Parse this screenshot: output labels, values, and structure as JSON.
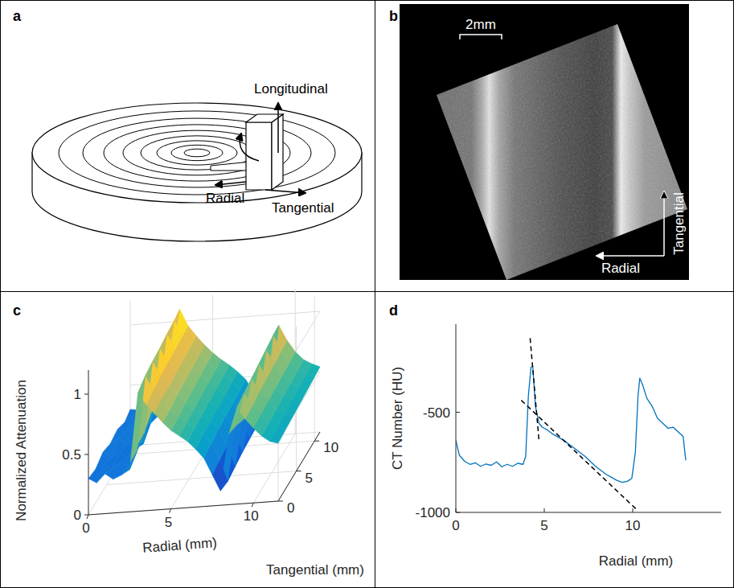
{
  "diagram": {
    "panel_label": "a",
    "labels": {
      "longitudinal": "Longitudinal",
      "radial": "Radial",
      "tangential": "Tangential"
    }
  },
  "image": {
    "panel_label": "b",
    "scale_bar": "2mm",
    "labels": {
      "radial": "Radial",
      "tangential": "Tangential"
    }
  },
  "chart_data": [
    {
      "type": "surface",
      "panel_label": "c",
      "x_label": "Radial (mm)",
      "y_label": "Tangential (mm)",
      "z_label": "Normalized Attenuation",
      "x": [
        0,
        0.5,
        1,
        1.5,
        2,
        2.5,
        3,
        3.5,
        4,
        4.5,
        5,
        5.5,
        6,
        6.5,
        7,
        7.5,
        8,
        8.5,
        9,
        9.5,
        10,
        10.5,
        11,
        11.5
      ],
      "y": [
        0,
        2,
        4,
        6,
        8,
        10,
        11.5
      ],
      "values": [
        [
          0.3,
          0.26,
          0.33,
          0.28,
          0.31,
          0.35,
          0.98,
          0.88,
          0.8,
          0.72,
          0.65,
          0.6,
          0.55,
          0.48,
          0.4,
          0.26,
          0.12,
          0.58,
          0.8,
          0.7,
          0.62,
          0.55,
          0.5,
          0.48
        ],
        [
          0.28,
          0.31,
          0.27,
          0.32,
          0.29,
          0.4,
          1.02,
          0.9,
          0.82,
          0.73,
          0.66,
          0.61,
          0.56,
          0.5,
          0.42,
          0.28,
          0.1,
          0.55,
          0.82,
          0.71,
          0.63,
          0.56,
          0.52,
          0.49
        ],
        [
          0.32,
          0.27,
          0.3,
          0.26,
          0.33,
          0.45,
          1.04,
          0.92,
          0.83,
          0.75,
          0.68,
          0.62,
          0.57,
          0.51,
          0.44,
          0.3,
          0.12,
          0.5,
          0.84,
          0.73,
          0.64,
          0.57,
          0.53,
          0.5
        ],
        [
          0.29,
          0.33,
          0.28,
          0.31,
          0.27,
          0.52,
          1.05,
          0.93,
          0.84,
          0.76,
          0.69,
          0.63,
          0.58,
          0.52,
          0.45,
          0.32,
          0.14,
          0.46,
          0.86,
          0.74,
          0.65,
          0.58,
          0.54,
          0.51
        ],
        [
          0.31,
          0.28,
          0.32,
          0.29,
          0.34,
          0.6,
          1.07,
          0.94,
          0.85,
          0.77,
          0.7,
          0.64,
          0.59,
          0.53,
          0.46,
          0.34,
          0.15,
          0.42,
          0.88,
          0.76,
          0.66,
          0.59,
          0.55,
          0.52
        ],
        [
          0.27,
          0.32,
          0.29,
          0.33,
          0.3,
          0.66,
          1.08,
          0.95,
          0.86,
          0.78,
          0.71,
          0.65,
          0.6,
          0.54,
          0.47,
          0.35,
          0.16,
          0.38,
          0.9,
          0.77,
          0.67,
          0.6,
          0.56,
          0.53
        ],
        [
          0.3,
          0.29,
          0.33,
          0.28,
          0.32,
          0.7,
          1.1,
          0.96,
          0.87,
          0.79,
          0.72,
          0.66,
          0.61,
          0.55,
          0.48,
          0.36,
          0.18,
          0.36,
          0.91,
          0.78,
          0.68,
          0.61,
          0.57,
          0.54
        ]
      ],
      "xlim": [
        0,
        11.5
      ],
      "ylim": [
        0,
        11.5
      ],
      "zlim": [
        0,
        1.2
      ],
      "xticks": [
        0,
        5,
        10
      ],
      "yticks": [
        0,
        5,
        10
      ],
      "zticks": [
        0,
        0.5,
        1
      ],
      "grid": true
    },
    {
      "type": "line",
      "panel_label": "d",
      "x_label": "Radial (mm)",
      "y_label": "CT Number (HU)",
      "xlim": [
        0,
        15
      ],
      "ylim": [
        -1000,
        -60
      ],
      "xticks": [
        0,
        5,
        10
      ],
      "yticks": [
        -1000,
        -500
      ],
      "grid": false,
      "series": [
        {
          "color": "#0072bd",
          "line_style": "solid",
          "x": [
            0,
            0.2,
            0.5,
            0.8,
            1.1,
            1.4,
            1.7,
            2.0,
            2.3,
            2.6,
            2.9,
            3.2,
            3.5,
            3.8,
            3.95,
            4.1,
            4.25,
            4.35,
            4.5,
            4.7,
            4.9,
            5.2,
            5.5,
            5.8,
            6.1,
            6.4,
            6.7,
            7.0,
            7.3,
            7.6,
            7.9,
            8.2,
            8.5,
            8.8,
            9.1,
            9.4,
            9.7,
            9.95,
            10.15,
            10.3,
            10.4,
            10.55,
            10.8,
            11.1,
            11.4,
            11.7,
            12.0,
            12.3,
            12.6,
            12.85,
            13.0
          ],
          "values": [
            -640,
            -715,
            -745,
            -760,
            -752,
            -770,
            -758,
            -765,
            -748,
            -772,
            -760,
            -770,
            -755,
            -760,
            -720,
            -420,
            -275,
            -270,
            -470,
            -555,
            -575,
            -590,
            -610,
            -625,
            -640,
            -660,
            -680,
            -700,
            -720,
            -745,
            -770,
            -790,
            -810,
            -825,
            -840,
            -850,
            -845,
            -830,
            -700,
            -420,
            -330,
            -360,
            -430,
            -470,
            -530,
            -555,
            -580,
            -575,
            -600,
            -620,
            -740
          ]
        },
        {
          "color": "#000000",
          "line_style": "dashed",
          "x": [
            4.2,
            4.7
          ],
          "values": [
            -130,
            -640
          ]
        },
        {
          "color": "#000000",
          "line_style": "dashed",
          "x": [
            3.7,
            10.2
          ],
          "values": [
            -440,
            -984
          ]
        }
      ]
    }
  ]
}
